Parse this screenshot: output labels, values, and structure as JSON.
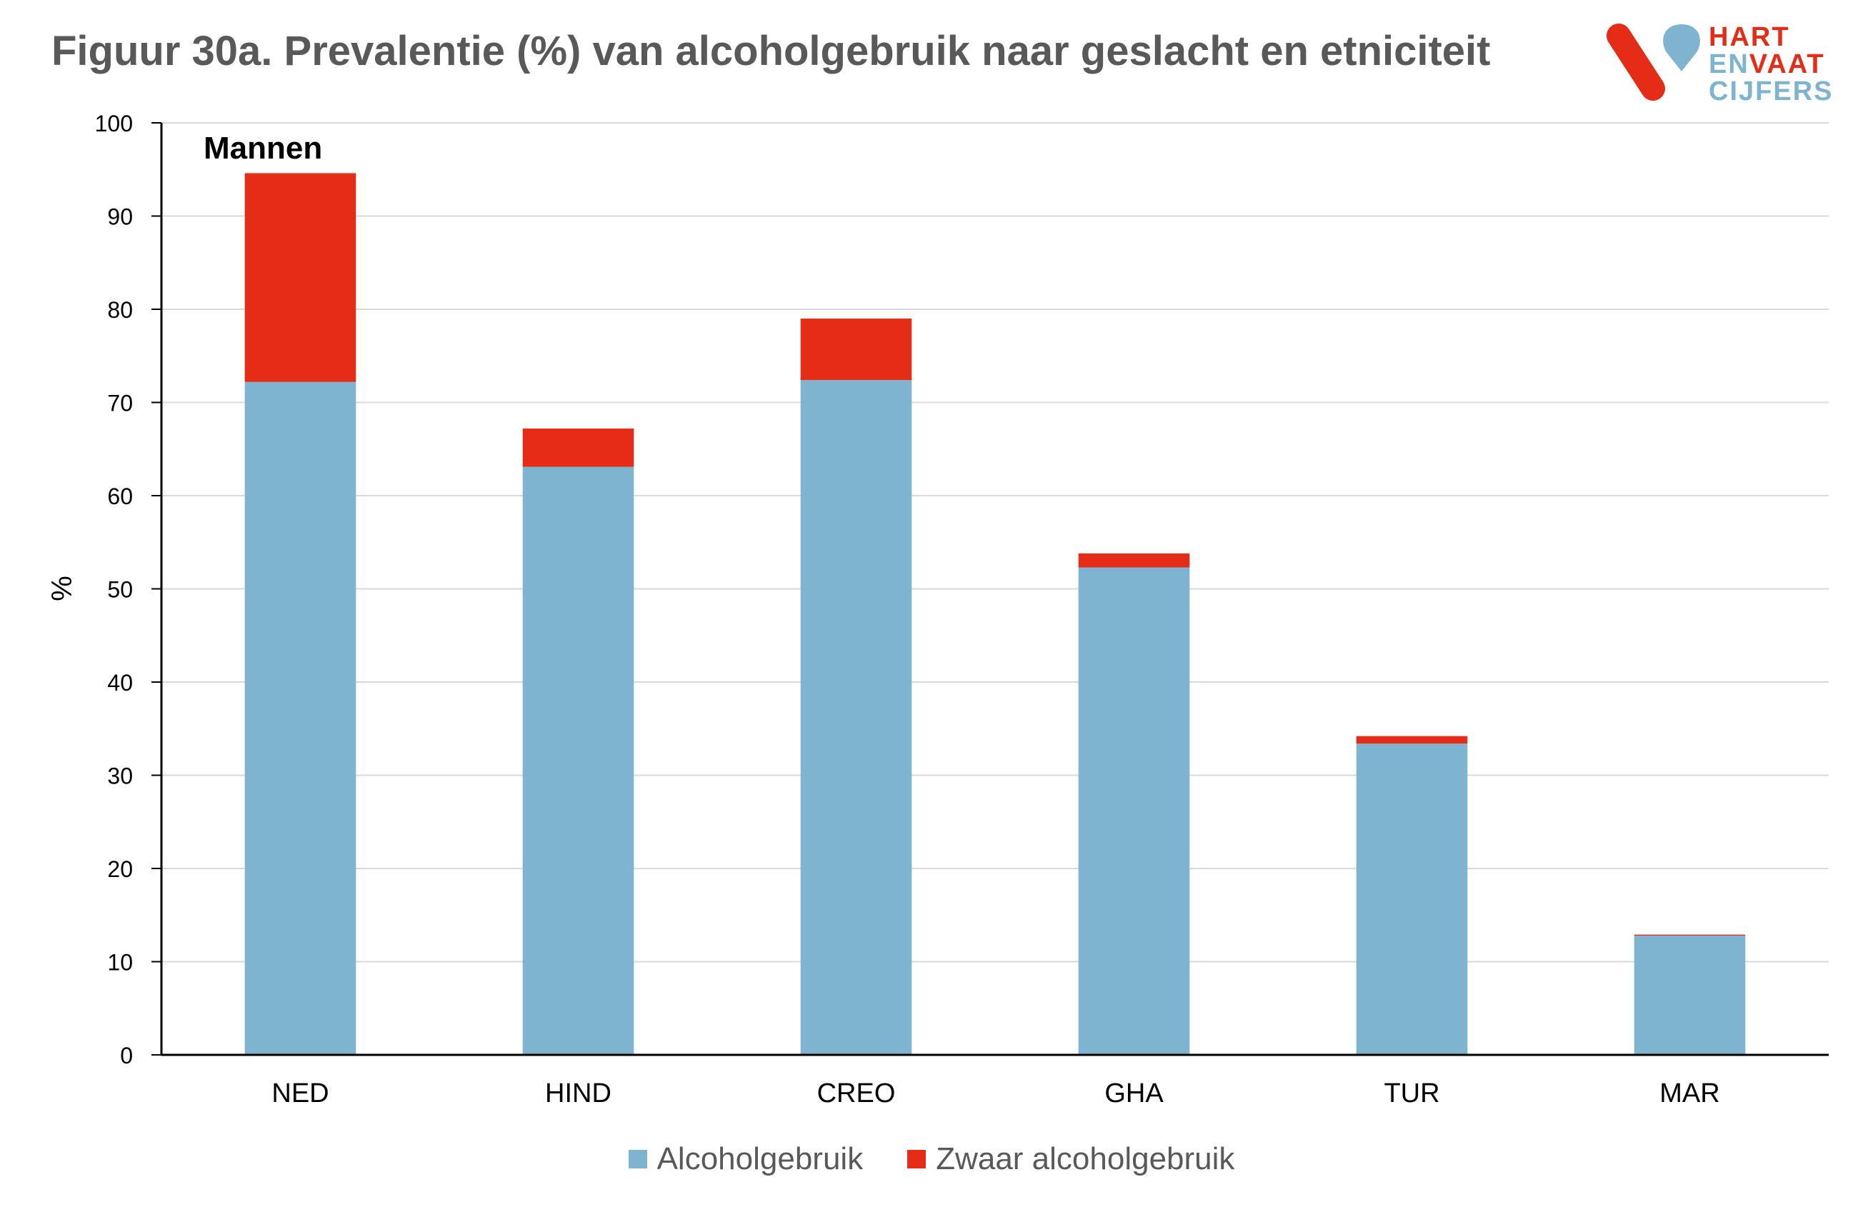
{
  "title": "Figuur 30a. Prevalentie (%) van alcoholgebruik naar geslacht en etniciteit",
  "logo": {
    "line1": "HART",
    "line2_en": "EN",
    "line2_vaat": "VAAT",
    "line3": "CIJFERS"
  },
  "colors": {
    "alcohol": "#7fb4d1",
    "heavy": "#e42c16",
    "grid": "#d9d9d9",
    "axis": "#000000",
    "title": "#595959"
  },
  "chart_data": {
    "type": "bar",
    "stacked": true,
    "panel_label": "Mannen",
    "ylabel": "%",
    "xlabel": "",
    "ylim": [
      0,
      100
    ],
    "yticks": [
      0,
      10,
      20,
      30,
      40,
      50,
      60,
      70,
      80,
      90,
      100
    ],
    "grid": true,
    "legend_position": "bottom",
    "categories": [
      "NED",
      "HIND",
      "CREO",
      "GHA",
      "TUR",
      "MAR"
    ],
    "series": [
      {
        "name": "Alcoholgebruik",
        "color": "#7fb4d1",
        "values": [
          72.2,
          63.1,
          72.4,
          52.3,
          33.4,
          12.8
        ]
      },
      {
        "name": "Zwaar alcoholgebruik",
        "color": "#e42c16",
        "values": [
          22.4,
          4.1,
          6.6,
          1.5,
          0.8,
          0.1
        ]
      }
    ]
  }
}
